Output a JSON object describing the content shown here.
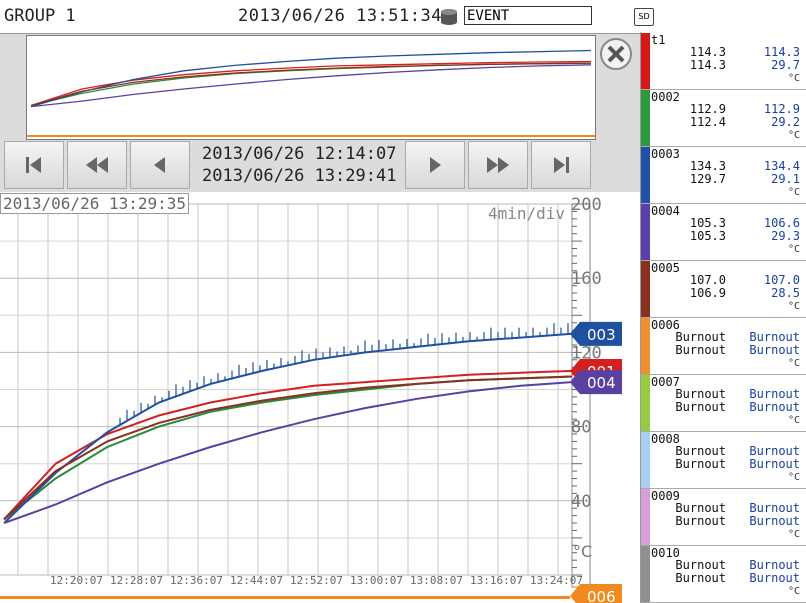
{
  "header": {
    "group_title": "GROUP 1",
    "datetime": "2013/06/26 13:51:34",
    "event_label": "EVENT",
    "sd_label": "SD"
  },
  "navigation": {
    "range_start": "2013/06/26 12:14:07",
    "range_end": "2013/06/26 13:29:41"
  },
  "trend": {
    "cursor_time": "2013/06/26 13:29:35",
    "time_per_div": "4min/div",
    "unit": "°C"
  },
  "chart_data": {
    "type": "line",
    "xlabel": "",
    "ylabel": "°C",
    "ylim": [
      0,
      200
    ],
    "y_ticks": [
      200,
      160,
      120,
      80,
      40
    ],
    "x_ticks": [
      "12:20:07",
      "12:28:07",
      "12:36:07",
      "12:44:07",
      "12:52:07",
      "13:00:07",
      "13:08:07",
      "13:16:07",
      "13:24:07"
    ],
    "grid": true,
    "series": [
      {
        "name": "001",
        "color": "#d42020",
        "values": [
          30,
          60,
          76,
          86,
          93,
          98,
          102,
          104,
          106,
          108,
          109,
          110
        ]
      },
      {
        "name": "002",
        "color": "#2a8a3a",
        "values": [
          30,
          52,
          69,
          80,
          88,
          93,
          97,
          100,
          103,
          105,
          106,
          107
        ]
      },
      {
        "name": "003",
        "color": "#2050a0",
        "values": [
          28,
          55,
          77,
          93,
          103,
          110,
          116,
          120,
          123,
          126,
          128,
          130
        ]
      },
      {
        "name": "004",
        "color": "#5a40a0",
        "values": [
          28,
          38,
          50,
          60,
          69,
          77,
          84,
          90,
          95,
          99,
          102,
          104
        ]
      },
      {
        "name": "005",
        "color": "#8a3020",
        "values": [
          30,
          56,
          72,
          82,
          89,
          94,
          98,
          101,
          103,
          105,
          106,
          107
        ]
      }
    ],
    "markers": [
      {
        "label": "003",
        "value": 130,
        "color": "#2050a0"
      },
      {
        "label": "001",
        "value": 110,
        "color": "#d42020"
      },
      {
        "label": "004",
        "value": 104,
        "color": "#5a40a0"
      },
      {
        "label": "006",
        "value": 0,
        "color": "#f08a20"
      }
    ]
  },
  "channels": [
    {
      "name": "t1",
      "color": "#d41818",
      "v1": "114.3",
      "v2": "114.3",
      "v3": "114.3",
      "v4": "29.7",
      "unit": "°C"
    },
    {
      "name": "0002",
      "color": "#2a9a3a",
      "v1": "112.9",
      "v2": "112.4",
      "v3": "112.9",
      "v4": "29.2",
      "unit": "°C"
    },
    {
      "name": "0003",
      "color": "#2050a8",
      "v1": "134.3",
      "v2": "129.7",
      "v3": "134.4",
      "v4": "29.1",
      "unit": "°C"
    },
    {
      "name": "0004",
      "color": "#5a40a8",
      "v1": "105.3",
      "v2": "105.3",
      "v3": "106.6",
      "v4": "29.3",
      "unit": "°C"
    },
    {
      "name": "0005",
      "color": "#8a3020",
      "v1": "107.0",
      "v2": "106.9",
      "v3": "107.0",
      "v4": "28.5",
      "unit": "°C"
    },
    {
      "name": "0006",
      "color": "#f09030",
      "v1": "Burnout",
      "v2": "Burnout",
      "v3": "Burnout",
      "v4": "Burnout",
      "unit": "°C"
    },
    {
      "name": "0007",
      "color": "#98cc40",
      "v1": "Burnout",
      "v2": "Burnout",
      "v3": "Burnout",
      "v4": "Burnout",
      "unit": "°C"
    },
    {
      "name": "0008",
      "color": "#a8d0f0",
      "v1": "Burnout",
      "v2": "Burnout",
      "v3": "Burnout",
      "v4": "Burnout",
      "unit": "°C"
    },
    {
      "name": "0009",
      "color": "#d8a0d8",
      "v1": "Burnout",
      "v2": "Burnout",
      "v3": "Burnout",
      "v4": "Burnout",
      "unit": "°C"
    },
    {
      "name": "0010",
      "color": "#909090",
      "v1": "Burnout",
      "v2": "Burnout",
      "v3": "Burnout",
      "v4": "Burnout",
      "unit": "°C"
    }
  ]
}
